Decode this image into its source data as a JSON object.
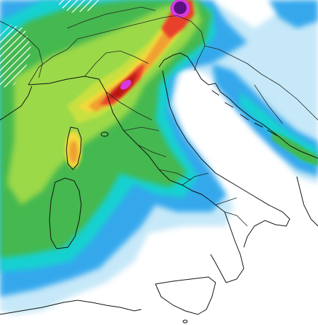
{
  "map": {
    "colors": {
      "background": "#ffffff",
      "light_blue": "#c6e8f8",
      "blue": "#35a8ec",
      "cyan": "#19d1d1",
      "teal_green": "#1fc17a",
      "green": "#45b84f",
      "light_green": "#9bd94a",
      "yellow_green": "#c8e040",
      "yellow": "#f3d93a",
      "orange": "#f0a030",
      "red": "#e8402c",
      "dark_red": "#b81616",
      "magenta": "#d838e0",
      "purple": "#5a1180",
      "hatch": "#ffffff",
      "coastline": "#111111",
      "border": "#222222"
    }
  }
}
